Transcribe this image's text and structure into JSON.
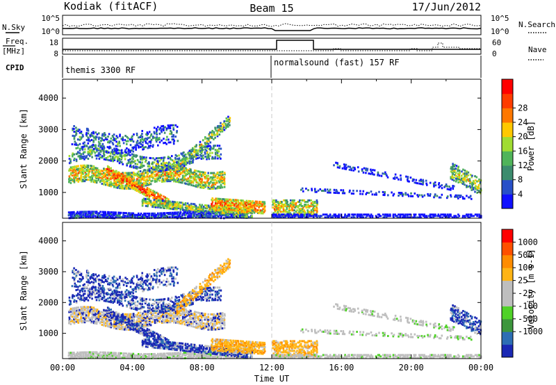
{
  "header": {
    "station": "Kodiak (fitACF)",
    "beam": "Beam 15",
    "date": "17/Jun/2012"
  },
  "status_panels": {
    "nsky_label": "N.Sky",
    "nsky_ticks": [
      "10^5",
      "10^0"
    ],
    "nsearch_label": "N.Search",
    "nsearch_ticks": [
      "10^5",
      "10^0"
    ],
    "freq_label_top": "Freq.",
    "freq_label_unit": "[MHz]",
    "freq_ticks": [
      "18",
      "8"
    ],
    "nave_label": "Nave",
    "nave_ticks": [
      "60",
      "0"
    ],
    "cpid_label": "CPID",
    "cpid_modes": [
      {
        "text": "themis 3300 RF",
        "start_hour": 0
      },
      {
        "text": "normalsound (fast) 157 RF",
        "start_hour": 12
      }
    ]
  },
  "chart_data": [
    {
      "type": "heatmap",
      "name": "power",
      "ylabel": "Slant Range [km]",
      "ylim": [
        180,
        4600
      ],
      "yticks": [
        "1000",
        "2000",
        "3000",
        "4000"
      ],
      "xlim_hours": [
        0,
        24
      ],
      "colorbar_label": "Power [dB]",
      "colorbar_ticks": [
        "4",
        "8",
        "12",
        "16",
        "20",
        "24",
        "28"
      ],
      "colorbar_colors": [
        "#1010ff",
        "#2850c8",
        "#3c8c6e",
        "#50b45a",
        "#a0dc32",
        "#ffc800",
        "#ff7800",
        "#ff3c00",
        "#ff0000"
      ]
    },
    {
      "type": "heatmap",
      "name": "velocity",
      "ylabel": "Slant Range [km]",
      "ylim": [
        180,
        4600
      ],
      "yticks": [
        "1000",
        "2000",
        "3000",
        "4000"
      ],
      "xlim_hours": [
        0,
        24
      ],
      "xticks": [
        "00:00",
        "04:00",
        "08:00",
        "12:00",
        "16:00",
        "20:00",
        "00:00"
      ],
      "xlabel": "Time UT",
      "colorbar_label": "Velocity [m s-1]",
      "colorbar_ticks": [
        "1000",
        "500",
        "100",
        "25",
        "-25",
        "-100",
        "-500",
        "-1000"
      ],
      "colorbar_colors": [
        "#1a28b4",
        "#2d6eb4",
        "#3c963c",
        "#50d228",
        "#bebebe",
        "#bebebe",
        "#ffb414",
        "#ff8c00",
        "#ff5000",
        "#ff0000"
      ]
    }
  ]
}
